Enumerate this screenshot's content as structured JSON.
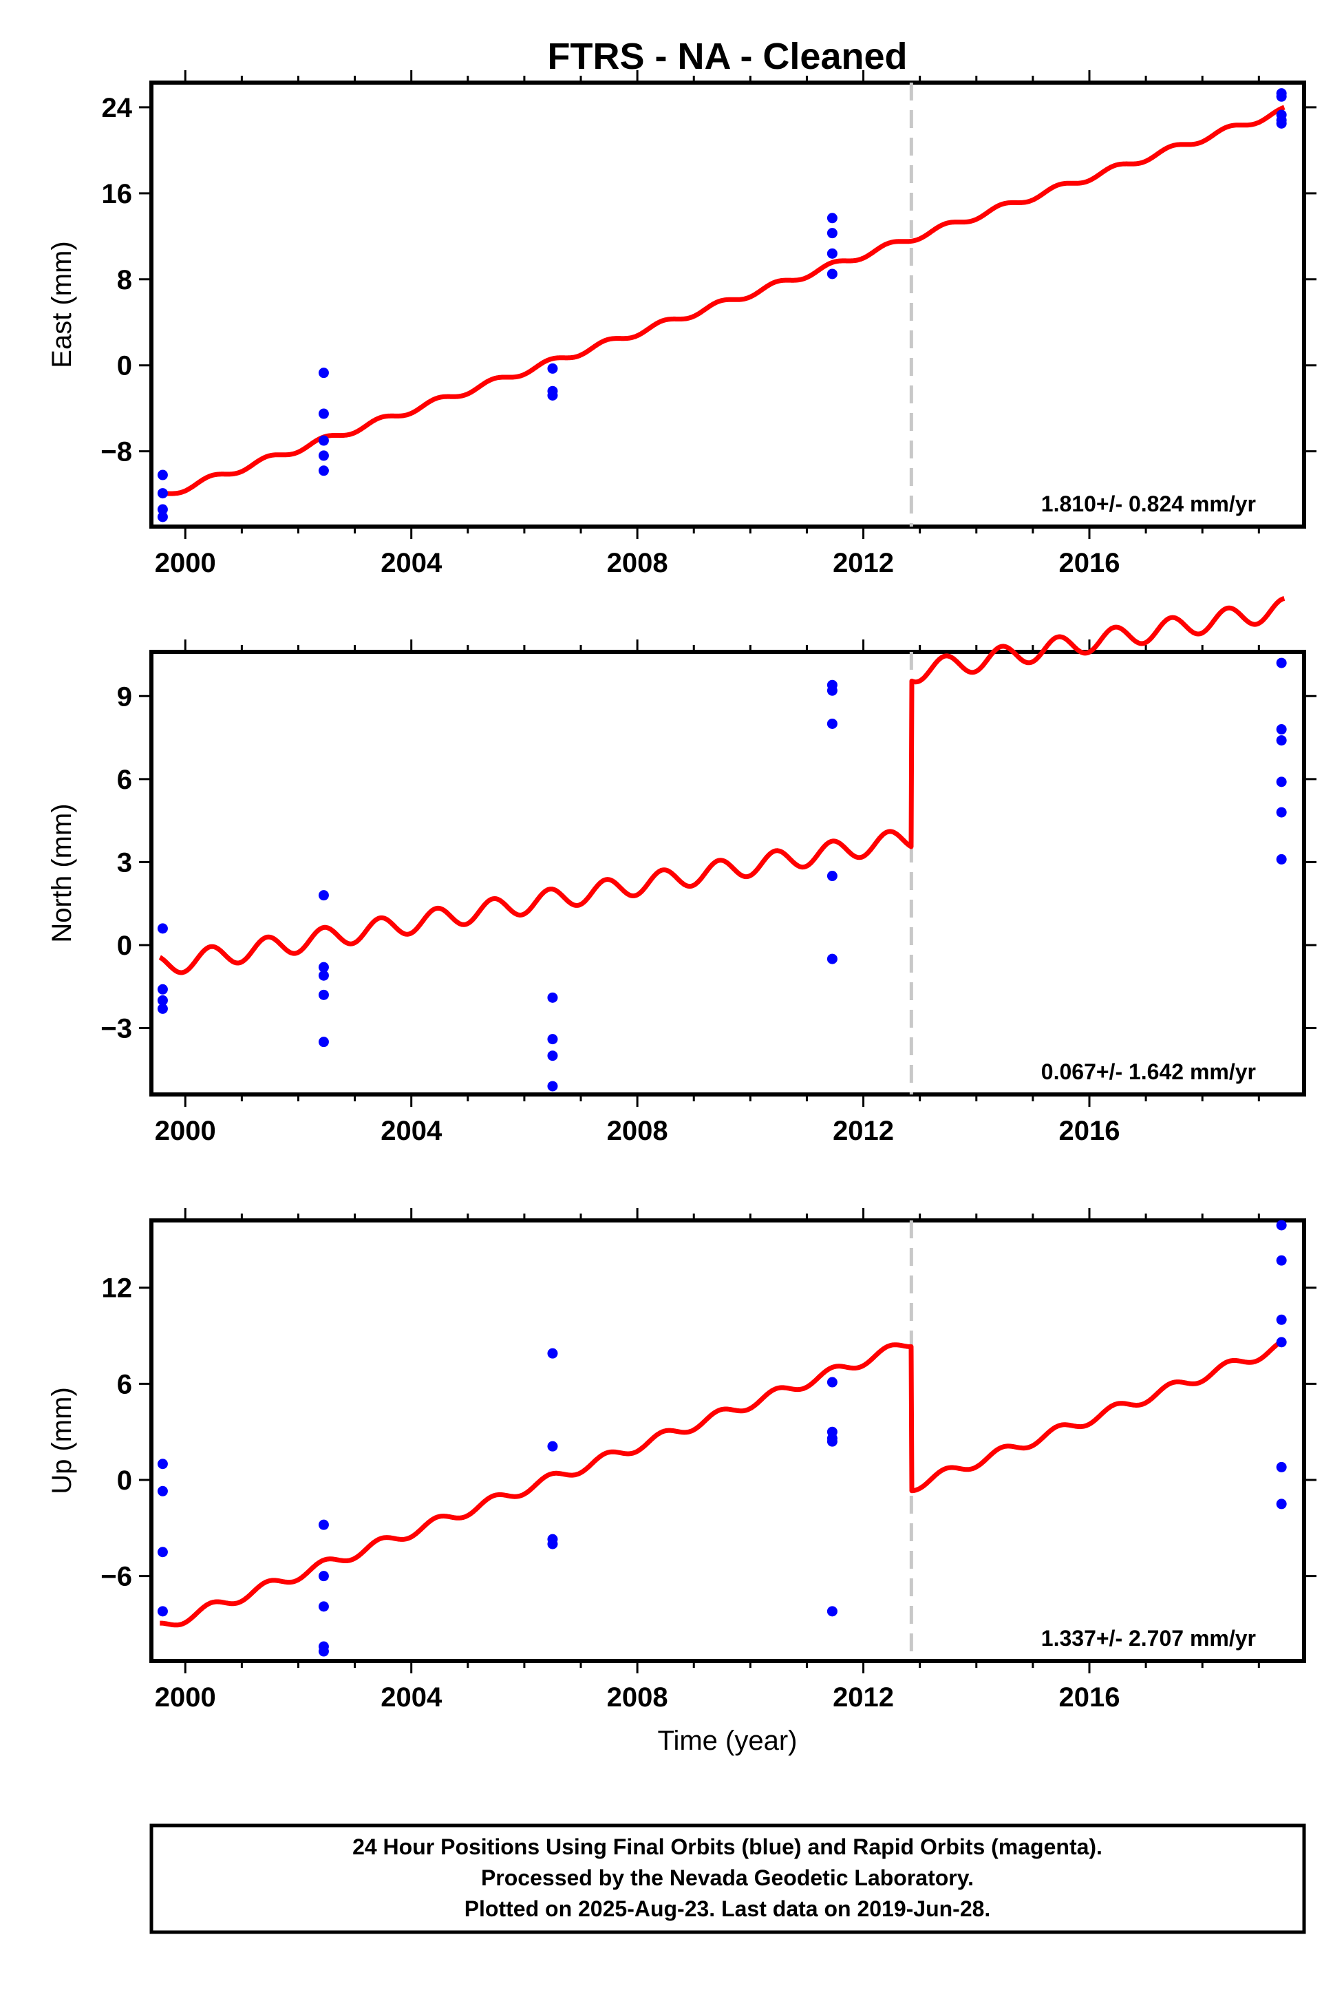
{
  "chart_data": {
    "type": "scatter",
    "title": "FTRS  - NA - Cleaned",
    "xlabel": "Time (year)",
    "xlim": [
      1999.4,
      2019.8
    ],
    "x_ticks": [
      2000,
      2004,
      2008,
      2012,
      2016
    ],
    "x_tick_labels": [
      "2000",
      "2004",
      "2008",
      "2012",
      "2016"
    ],
    "step_epoch": 2012.85,
    "colors": {
      "points": "#0000ff",
      "model": "#ff0000",
      "step_line": "#c8c8c8",
      "frame": "#000000"
    },
    "panels": [
      {
        "name": "east",
        "ylabel": "East (mm)",
        "ylim": [
          -15,
          26.3
        ],
        "y_ticks": [
          24,
          16,
          8,
          0,
          -8
        ],
        "y_tick_labels": [
          "24",
          "16",
          "8",
          "0",
          "−8"
        ],
        "rate_label": "1.810+/- 0.824 mm/yr",
        "model": {
          "start": 1999.55,
          "end": 2019.45,
          "y_start": -12.2,
          "y_end": 23.7,
          "step": 0,
          "amplitude": 0.3
        },
        "points": [
          [
            1999.6,
            -10.2
          ],
          [
            1999.6,
            -11.9
          ],
          [
            1999.6,
            -13.4
          ],
          [
            1999.6,
            -14.1
          ],
          [
            2002.45,
            -0.7
          ],
          [
            2002.45,
            -4.5
          ],
          [
            2002.45,
            -7.0
          ],
          [
            2002.45,
            -8.4
          ],
          [
            2002.45,
            -9.8
          ],
          [
            2006.5,
            -0.3
          ],
          [
            2006.5,
            -2.4
          ],
          [
            2006.5,
            -2.8
          ],
          [
            2011.45,
            13.7
          ],
          [
            2011.45,
            12.3
          ],
          [
            2011.45,
            10.4
          ],
          [
            2011.45,
            8.5
          ],
          [
            2019.4,
            25.3
          ],
          [
            2019.4,
            25.0
          ],
          [
            2019.4,
            23.3
          ],
          [
            2019.4,
            22.8
          ],
          [
            2019.4,
            22.5
          ]
        ]
      },
      {
        "name": "north",
        "ylabel": "North (mm)",
        "ylim": [
          -5.4,
          10.6
        ],
        "y_ticks": [
          9,
          6,
          3,
          0,
          -3
        ],
        "y_tick_labels": [
          "9",
          "6",
          "3",
          "0",
          "−3"
        ],
        "rate_label": "0.067+/- 1.642 mm/yr",
        "model": {
          "start": 1999.55,
          "end": 2019.45,
          "y_start": -0.75,
          "y_end": 6.15,
          "step": 6.0,
          "amplitude": 0.38
        },
        "points": [
          [
            1999.6,
            0.6
          ],
          [
            1999.6,
            -1.6
          ],
          [
            1999.6,
            -2.0
          ],
          [
            1999.6,
            -2.3
          ],
          [
            2002.45,
            1.8
          ],
          [
            2002.45,
            -0.8
          ],
          [
            2002.45,
            -1.1
          ],
          [
            2002.45,
            -1.8
          ],
          [
            2002.45,
            -3.5
          ],
          [
            2006.5,
            -1.9
          ],
          [
            2006.5,
            -3.4
          ],
          [
            2006.5,
            -4.0
          ],
          [
            2006.5,
            -5.1
          ],
          [
            2011.45,
            9.4
          ],
          [
            2011.45,
            9.2
          ],
          [
            2011.45,
            8.0
          ],
          [
            2011.45,
            2.5
          ],
          [
            2011.45,
            -0.5
          ],
          [
            2019.4,
            10.2
          ],
          [
            2019.4,
            7.8
          ],
          [
            2019.4,
            7.4
          ],
          [
            2019.4,
            5.9
          ],
          [
            2019.4,
            4.8
          ],
          [
            2019.4,
            3.1
          ]
        ]
      },
      {
        "name": "up",
        "ylabel": "Up (mm)",
        "ylim": [
          -11.3,
          16.2
        ],
        "y_ticks": [
          12,
          6,
          0,
          -6
        ],
        "y_tick_labels": [
          "12",
          "6",
          "0",
          "−6"
        ],
        "rate_label": "1.337+/- 2.707 mm/yr",
        "model": {
          "start": 1999.55,
          "end": 2019.45,
          "y_start": -9.2,
          "y_end": 17.4,
          "step": -9.0,
          "amplitude": 0.32
        },
        "points": [
          [
            1999.6,
            1.0
          ],
          [
            1999.6,
            -0.7
          ],
          [
            1999.6,
            -4.5
          ],
          [
            1999.6,
            -8.2
          ],
          [
            2002.45,
            -2.8
          ],
          [
            2002.45,
            -6.0
          ],
          [
            2002.45,
            -7.9
          ],
          [
            2002.45,
            -10.4
          ],
          [
            2002.45,
            -10.7
          ],
          [
            2006.5,
            7.9
          ],
          [
            2006.5,
            2.1
          ],
          [
            2006.5,
            -3.7
          ],
          [
            2006.5,
            -4.0
          ],
          [
            2011.45,
            6.1
          ],
          [
            2011.45,
            3.0
          ],
          [
            2011.45,
            2.6
          ],
          [
            2011.45,
            2.4
          ],
          [
            2011.45,
            -8.2
          ],
          [
            2019.4,
            15.9
          ],
          [
            2019.4,
            13.7
          ],
          [
            2019.4,
            10.0
          ],
          [
            2019.4,
            8.6
          ],
          [
            2019.4,
            0.8
          ],
          [
            2019.4,
            -1.5
          ]
        ]
      }
    ],
    "footer_lines": [
      "24 Hour Positions Using Final Orbits (blue) and Rapid Orbits (magenta).",
      "Processed by the Nevada Geodetic Laboratory.",
      "Plotted on 2025-Aug-23. Last data on 2019-Jun-28."
    ]
  }
}
